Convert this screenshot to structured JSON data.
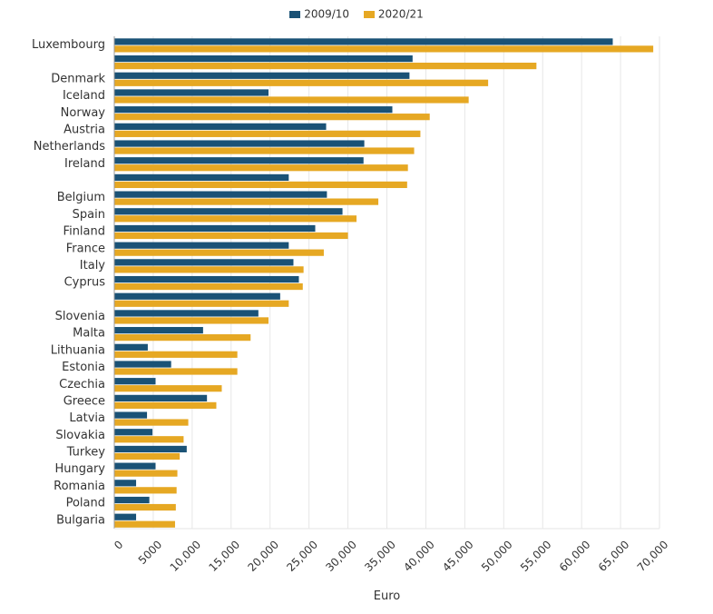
{
  "colors": {
    "s2009": "#1a5276",
    "s2020": "#e6a823",
    "grid": "#e6e6e6",
    "axis": "#999999",
    "text": "#333333"
  },
  "chart_data": {
    "type": "bar",
    "orientation": "horizontal",
    "title": "",
    "xlabel": "Euro",
    "ylabel": "",
    "xlim": [
      0,
      70000
    ],
    "xticks": [
      0,
      5000,
      10000,
      15000,
      20000,
      25000,
      30000,
      35000,
      40000,
      45000,
      50000,
      55000,
      60000,
      65000,
      70000
    ],
    "xtick_labels": [
      "0",
      "5000",
      "10,000",
      "15,000",
      "20,000",
      "25,000",
      "30,000",
      "35,000",
      "40,000",
      "45,000",
      "50,000",
      "55,000",
      "60,000",
      "65,000",
      "70,000"
    ],
    "grid": true,
    "legend_position": "top-center",
    "categories": [
      "Luxembourg",
      "",
      "Denmark",
      "Iceland",
      "Norway",
      "Austria",
      "Netherlands",
      "Ireland",
      "",
      "Belgium",
      "Spain",
      "Finland",
      "France",
      "Italy",
      "Cyprus",
      "",
      "Slovenia",
      "Malta",
      "Lithuania",
      "Estonia",
      "Czechia",
      "Greece",
      "Latvia",
      "Slovakia",
      "Turkey",
      "Hungary",
      "Romania",
      "Poland",
      "Bulgaria"
    ],
    "series": [
      {
        "name": "2009/10",
        "values": [
          64000,
          38300,
          37900,
          19800,
          35700,
          27200,
          32100,
          32000,
          22400,
          27300,
          29300,
          25800,
          22400,
          23000,
          23700,
          21300,
          18500,
          11400,
          4300,
          7300,
          5300,
          11900,
          4200,
          4900,
          9300,
          5300,
          2800,
          4500,
          2800
        ]
      },
      {
        "name": "2020/21",
        "values": [
          69200,
          54200,
          48000,
          45500,
          40500,
          39300,
          38500,
          37700,
          37600,
          33900,
          31100,
          30000,
          26900,
          24300,
          24200,
          22400,
          19800,
          17500,
          15800,
          15800,
          13800,
          13100,
          9500,
          8900,
          8400,
          8100,
          8000,
          7900,
          7800
        ]
      }
    ]
  }
}
